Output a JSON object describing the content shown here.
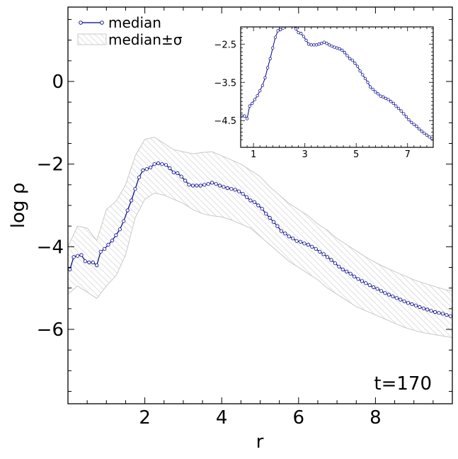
{
  "chart_data": [
    {
      "type": "line",
      "xlabel": "r",
      "ylabel": "log ρ",
      "xlim": [
        0,
        10
      ],
      "ylim": [
        -7.8,
        1.8
      ],
      "xticks": [
        2,
        4,
        6,
        8
      ],
      "yticks": [
        0,
        -2,
        -4,
        -6
      ],
      "xtick_labels": [
        "2",
        "4",
        "6",
        "8"
      ],
      "ytick_labels": [
        "0",
        "−2",
        "−4",
        "−6"
      ],
      "annotation": "t=170",
      "legend": {
        "placement": "top-left",
        "entries": [
          "median",
          "median±σ"
        ]
      },
      "series": [
        {
          "name": "median",
          "color": "#00008b",
          "marker": "open-circle",
          "x": [
            0.05,
            0.15,
            0.25,
            0.35,
            0.45,
            0.55,
            0.65,
            0.75,
            0.85,
            0.95,
            1.05,
            1.15,
            1.25,
            1.35,
            1.45,
            1.55,
            1.65,
            1.75,
            1.85,
            1.95,
            2.05,
            2.15,
            2.25,
            2.35,
            2.45,
            2.55,
            2.65,
            2.75,
            2.85,
            2.95,
            3.05,
            3.15,
            3.25,
            3.35,
            3.45,
            3.55,
            3.65,
            3.75,
            3.85,
            3.95,
            4.05,
            4.15,
            4.25,
            4.35,
            4.45,
            4.55,
            4.65,
            4.75,
            4.85,
            4.95,
            5.05,
            5.15,
            5.25,
            5.35,
            5.45,
            5.55,
            5.65,
            5.75,
            5.85,
            5.95,
            6.05,
            6.15,
            6.25,
            6.35,
            6.45,
            6.55,
            6.65,
            6.75,
            6.85,
            6.95,
            7.05,
            7.15,
            7.25,
            7.35,
            7.45,
            7.55,
            7.65,
            7.75,
            7.85,
            7.95,
            8.05,
            8.15,
            8.25,
            8.35,
            8.45,
            8.55,
            8.65,
            8.75,
            8.85,
            8.95,
            9.05,
            9.15,
            9.25,
            9.35,
            9.45,
            9.55,
            9.65,
            9.75,
            9.85,
            9.95
          ],
          "values": [
            -4.55,
            -4.25,
            -4.22,
            -4.2,
            -4.35,
            -4.38,
            -4.38,
            -4.45,
            -4.12,
            -4.05,
            -3.95,
            -3.85,
            -3.72,
            -3.58,
            -3.38,
            -3.12,
            -2.88,
            -2.6,
            -2.32,
            -2.15,
            -2.12,
            -2.08,
            -2.0,
            -1.98,
            -2.0,
            -2.02,
            -2.1,
            -2.2,
            -2.22,
            -2.3,
            -2.4,
            -2.5,
            -2.52,
            -2.52,
            -2.52,
            -2.5,
            -2.48,
            -2.45,
            -2.48,
            -2.52,
            -2.55,
            -2.58,
            -2.6,
            -2.62,
            -2.66,
            -2.72,
            -2.8,
            -2.88,
            -2.92,
            -3.0,
            -3.08,
            -3.2,
            -3.3,
            -3.4,
            -3.5,
            -3.62,
            -3.68,
            -3.75,
            -3.8,
            -3.86,
            -3.88,
            -3.92,
            -3.95,
            -4.0,
            -4.05,
            -4.12,
            -4.18,
            -4.25,
            -4.32,
            -4.4,
            -4.48,
            -4.55,
            -4.6,
            -4.65,
            -4.72,
            -4.78,
            -4.83,
            -4.88,
            -4.93,
            -4.98,
            -5.02,
            -5.07,
            -5.12,
            -5.16,
            -5.2,
            -5.24,
            -5.28,
            -5.32,
            -5.36,
            -5.39,
            -5.42,
            -5.46,
            -5.49,
            -5.52,
            -5.55,
            -5.58,
            -5.6,
            -5.62,
            -5.65,
            -5.68
          ]
        },
        {
          "name": "median±σ",
          "type": "area",
          "color": "#c8c8c8",
          "x": [
            0.0,
            0.25,
            0.5,
            0.75,
            1.0,
            1.25,
            1.5,
            1.75,
            2.0,
            2.25,
            2.5,
            2.75,
            3.0,
            3.25,
            3.5,
            3.75,
            4.0,
            4.25,
            4.5,
            4.75,
            5.0,
            5.25,
            5.5,
            5.75,
            6.0,
            6.25,
            6.5,
            6.75,
            7.0,
            7.25,
            7.5,
            7.75,
            8.0,
            8.25,
            8.5,
            8.75,
            9.0,
            9.25,
            9.5,
            9.75,
            10.0
          ],
          "upper": [
            -4.0,
            -3.5,
            -3.55,
            -3.85,
            -3.1,
            -2.9,
            -2.5,
            -1.8,
            -1.4,
            -1.35,
            -1.5,
            -1.65,
            -1.7,
            -1.75,
            -1.72,
            -1.7,
            -1.8,
            -1.9,
            -2.0,
            -2.15,
            -2.3,
            -2.55,
            -2.75,
            -2.95,
            -3.1,
            -3.25,
            -3.45,
            -3.6,
            -3.8,
            -3.95,
            -4.1,
            -4.25,
            -4.38,
            -4.5,
            -4.6,
            -4.7,
            -4.8,
            -4.88,
            -4.95,
            -5.02,
            -5.08
          ],
          "lower": [
            -5.15,
            -4.95,
            -5.1,
            -5.25,
            -4.95,
            -4.7,
            -4.2,
            -3.3,
            -2.85,
            -2.7,
            -2.75,
            -2.85,
            -2.95,
            -3.1,
            -3.2,
            -3.25,
            -3.28,
            -3.35,
            -3.45,
            -3.55,
            -3.75,
            -3.95,
            -4.15,
            -4.35,
            -4.5,
            -4.65,
            -4.8,
            -5.0,
            -5.15,
            -5.3,
            -5.45,
            -5.55,
            -5.65,
            -5.75,
            -5.85,
            -5.95,
            -6.02,
            -6.08,
            -6.12,
            -6.16,
            -6.2
          ]
        }
      ]
    },
    {
      "type": "line",
      "placement": "inset top-right",
      "xlim": [
        0.5,
        8.0
      ],
      "ylim": [
        -5.2,
        -2.05
      ],
      "xticks": [
        1,
        3,
        5,
        7
      ],
      "yticks": [
        -2.5,
        -3.5,
        -4.5
      ],
      "xtick_labels": [
        "1",
        "3",
        "5",
        "7"
      ],
      "ytick_labels": [
        "−2.5",
        "−3.5",
        "−4.5"
      ],
      "series": [
        {
          "name": "median",
          "color": "#00008b",
          "marker": "open-circle",
          "x": [
            0.55,
            0.65,
            0.75,
            0.85,
            0.95,
            1.05,
            1.15,
            1.25,
            1.35,
            1.45,
            1.55,
            1.65,
            1.75,
            1.85,
            1.95,
            2.05,
            2.15,
            2.25,
            2.35,
            2.45,
            2.55,
            2.65,
            2.75,
            2.85,
            2.95,
            3.05,
            3.15,
            3.25,
            3.35,
            3.45,
            3.55,
            3.65,
            3.75,
            3.85,
            3.95,
            4.05,
            4.15,
            4.25,
            4.35,
            4.45,
            4.55,
            4.65,
            4.75,
            4.85,
            4.95,
            5.05,
            5.15,
            5.25,
            5.35,
            5.45,
            5.55,
            5.65,
            5.75,
            5.85,
            5.95,
            6.05,
            6.15,
            6.25,
            6.35,
            6.45,
            6.55,
            6.65,
            6.75,
            6.85,
            6.95,
            7.05,
            7.15,
            7.25,
            7.35,
            7.45,
            7.55,
            7.65,
            7.75,
            7.85,
            7.95
          ],
          "values": [
            -4.38,
            -4.38,
            -4.45,
            -4.12,
            -4.05,
            -3.95,
            -3.85,
            -3.72,
            -3.58,
            -3.38,
            -3.12,
            -2.88,
            -2.6,
            -2.32,
            -2.15,
            -2.12,
            -2.08,
            -2.0,
            -1.98,
            -2.0,
            -2.02,
            -2.1,
            -2.2,
            -2.22,
            -2.3,
            -2.4,
            -2.5,
            -2.52,
            -2.52,
            -2.52,
            -2.5,
            -2.48,
            -2.45,
            -2.48,
            -2.52,
            -2.55,
            -2.58,
            -2.6,
            -2.62,
            -2.66,
            -2.72,
            -2.8,
            -2.88,
            -2.92,
            -3.0,
            -3.08,
            -3.2,
            -3.3,
            -3.4,
            -3.5,
            -3.62,
            -3.68,
            -3.75,
            -3.8,
            -3.86,
            -3.88,
            -3.92,
            -3.95,
            -4.0,
            -4.05,
            -4.12,
            -4.18,
            -4.25,
            -4.32,
            -4.4,
            -4.48,
            -4.55,
            -4.6,
            -4.65,
            -4.72,
            -4.78,
            -4.83,
            -4.88,
            -4.93,
            -4.98
          ]
        }
      ]
    }
  ]
}
